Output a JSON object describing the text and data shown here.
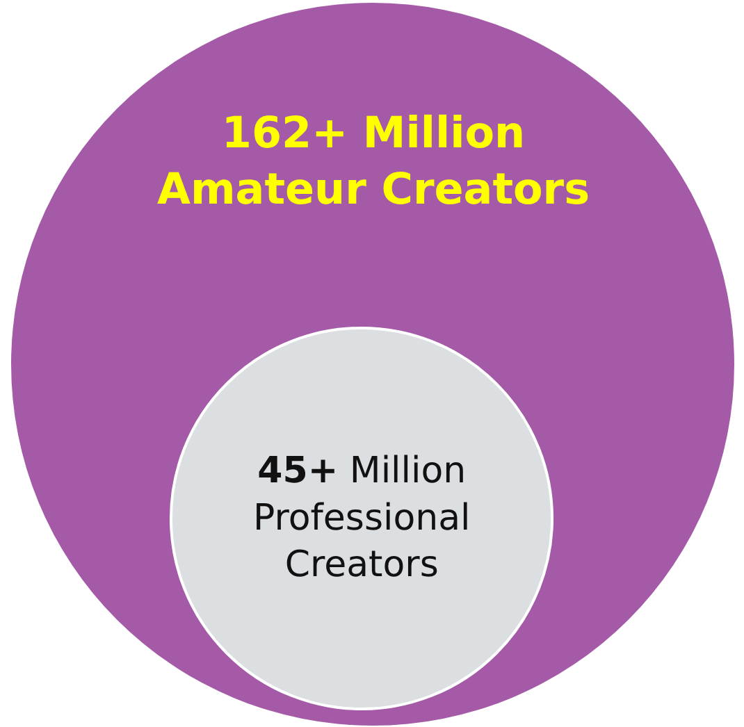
{
  "chart_data": {
    "type": "other",
    "categories": [
      "Amateur Creators",
      "Professional Creators"
    ],
    "values": [
      162,
      45
    ],
    "value_labels": [
      "162+ Million",
      "45+ Million"
    ],
    "colors": [
      "#a55aa8",
      "#dcdfe2"
    ]
  }
}
